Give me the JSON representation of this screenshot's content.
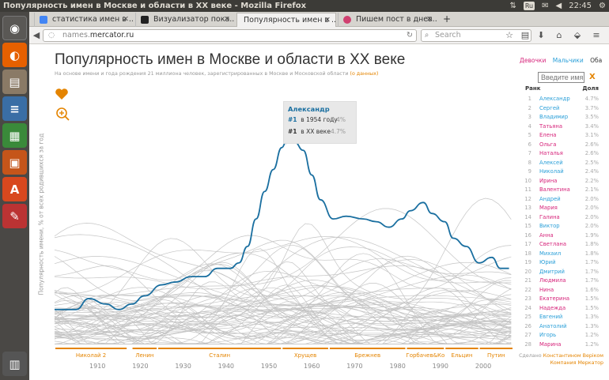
{
  "window": {
    "title": "Популярность имен в Москве и области в ХХ веке - Mozilla Firefox",
    "keyboard": "Ru",
    "clock": "22:45"
  },
  "tabs": [
    {
      "label": "статистика имен в ...",
      "favicon_color": "#4285f4"
    },
    {
      "label": "Визуализатор пока...",
      "favicon_color": "#222"
    },
    {
      "label": "Популярность имен в ...",
      "favicon_color": "#e8e8e8"
    },
    {
      "label": "Пишем пост в днев...",
      "favicon_color": "#d04070"
    }
  ],
  "nav": {
    "url_prefix": "names.",
    "url_domain": "mercator.ru",
    "search_placeholder": "Search"
  },
  "page": {
    "title": "Популярность имен в Москве и области в ХХ веке",
    "subtitle": "На основе имени и года рождения 21 миллиона человек, зарегистрированных в Москве и Московской области",
    "subtitle_link": "(о данных)",
    "ylabel": "Популярность имени, % от всех родившихся за год",
    "gender": {
      "girls": "Девочки",
      "boys": "Мальчики",
      "both": "Оба"
    },
    "search_placeholder": "Введите имя",
    "clear": "X",
    "rank_header": "Ранк",
    "share_header": "Доля",
    "credit": [
      "Сделано",
      "Константином Верiком",
      "Компания Меркатор"
    ]
  },
  "colors": {
    "accent": "#e48400",
    "highlight": "#1a6fa0",
    "male": "#2a9fd8",
    "female": "#d6237a",
    "lines": "#c4c4c4"
  },
  "tooltip": {
    "name": "Александр",
    "rank1": "#1",
    "year_text": "в 1954 году",
    "year_pct": "7.4%",
    "rank2": "#1",
    "century_text": "в ХХ веке",
    "century_pct": "4.7%"
  },
  "ranking": [
    {
      "rank": "1",
      "name": "Александр",
      "pct": "4.7%",
      "g": "m"
    },
    {
      "rank": "2",
      "name": "Сергей",
      "pct": "3.7%",
      "g": "m"
    },
    {
      "rank": "3",
      "name": "Владимир",
      "pct": "3.5%",
      "g": "m"
    },
    {
      "rank": "4",
      "name": "Татьяна",
      "pct": "3.4%",
      "g": "f"
    },
    {
      "rank": "5",
      "name": "Елена",
      "pct": "3.1%",
      "g": "f"
    },
    {
      "rank": "6",
      "name": "Ольга",
      "pct": "2.6%",
      "g": "f"
    },
    {
      "rank": "7",
      "name": "Наталья",
      "pct": "2.6%",
      "g": "f"
    },
    {
      "rank": "8",
      "name": "Алексей",
      "pct": "2.5%",
      "g": "m"
    },
    {
      "rank": "9",
      "name": "Николай",
      "pct": "2.4%",
      "g": "m"
    },
    {
      "rank": "10",
      "name": "Ирина",
      "pct": "2.2%",
      "g": "f"
    },
    {
      "rank": "11",
      "name": "Валентина",
      "pct": "2.1%",
      "g": "f"
    },
    {
      "rank": "12",
      "name": "Андрей",
      "pct": "2.0%",
      "g": "m"
    },
    {
      "rank": "13",
      "name": "Мария",
      "pct": "2.0%",
      "g": "f"
    },
    {
      "rank": "14",
      "name": "Галина",
      "pct": "2.0%",
      "g": "f"
    },
    {
      "rank": "15",
      "name": "Виктор",
      "pct": "2.0%",
      "g": "m"
    },
    {
      "rank": "16",
      "name": "Анна",
      "pct": "1.9%",
      "g": "f"
    },
    {
      "rank": "17",
      "name": "Светлана",
      "pct": "1.8%",
      "g": "f"
    },
    {
      "rank": "18",
      "name": "Михаил",
      "pct": "1.8%",
      "g": "m"
    },
    {
      "rank": "19",
      "name": "Юрий",
      "pct": "1.7%",
      "g": "m"
    },
    {
      "rank": "20",
      "name": "Дмитрий",
      "pct": "1.7%",
      "g": "m"
    },
    {
      "rank": "21",
      "name": "Людмила",
      "pct": "1.7%",
      "g": "f"
    },
    {
      "rank": "22",
      "name": "Нина",
      "pct": "1.6%",
      "g": "f"
    },
    {
      "rank": "23",
      "name": "Екатерина",
      "pct": "1.5%",
      "g": "f"
    },
    {
      "rank": "24",
      "name": "Надежда",
      "pct": "1.5%",
      "g": "f"
    },
    {
      "rank": "25",
      "name": "Евгений",
      "pct": "1.3%",
      "g": "m"
    },
    {
      "rank": "26",
      "name": "Анатолий",
      "pct": "1.3%",
      "g": "m"
    },
    {
      "rank": "27",
      "name": "Игорь",
      "pct": "1.2%",
      "g": "m"
    },
    {
      "rank": "28",
      "name": "Марина",
      "pct": "1.2%",
      "g": "f"
    }
  ],
  "chart_data": {
    "type": "line",
    "xlim": [
      1900,
      2007
    ],
    "ylim": [
      0,
      8
    ],
    "x_ticks": [
      1910,
      1920,
      1930,
      1940,
      1950,
      1960,
      1970,
      1980,
      1990,
      2000
    ],
    "eras": [
      {
        "label": "Николай 2",
        "from": 1900,
        "to": 1917
      },
      {
        "label": "Ленин",
        "from": 1918,
        "to": 1924
      },
      {
        "label": "Сталин",
        "from": 1924,
        "to": 1953
      },
      {
        "label": "Хрущев",
        "from": 1953,
        "to": 1964
      },
      {
        "label": "Брежнев",
        "from": 1964,
        "to": 1982
      },
      {
        "label": "Горбачев&Ко",
        "from": 1982,
        "to": 1991
      },
      {
        "label": "Ельцин",
        "from": 1991,
        "to": 1999
      },
      {
        "label": "Путин",
        "from": 1999,
        "to": 2007
      }
    ],
    "highlight": {
      "name": "Александр",
      "x": [
        1900,
        1905,
        1908,
        1912,
        1915,
        1918,
        1921,
        1925,
        1928,
        1932,
        1935,
        1938,
        1941,
        1943,
        1945,
        1947,
        1949,
        1951,
        1953,
        1954,
        1956,
        1958,
        1960,
        1962,
        1965,
        1968,
        1972,
        1975,
        1978,
        1981,
        1983,
        1986,
        1988,
        1991,
        1993,
        1996,
        1999,
        2002,
        2004,
        2006
      ],
      "y": [
        1.3,
        1.3,
        1.7,
        1.5,
        1.3,
        1.5,
        1.8,
        2.2,
        2.3,
        2.5,
        2.5,
        2.8,
        2.8,
        3.0,
        3.6,
        4.6,
        5.6,
        6.4,
        7.2,
        7.4,
        7.4,
        7.1,
        6.2,
        5.3,
        4.6,
        4.7,
        4.6,
        4.5,
        4.3,
        4.6,
        4.9,
        5.2,
        4.8,
        4.5,
        3.9,
        3.6,
        3.0,
        3.2,
        2.8,
        2.8
      ]
    },
    "annotation": {
      "year": 1954,
      "value": 7.4
    }
  }
}
